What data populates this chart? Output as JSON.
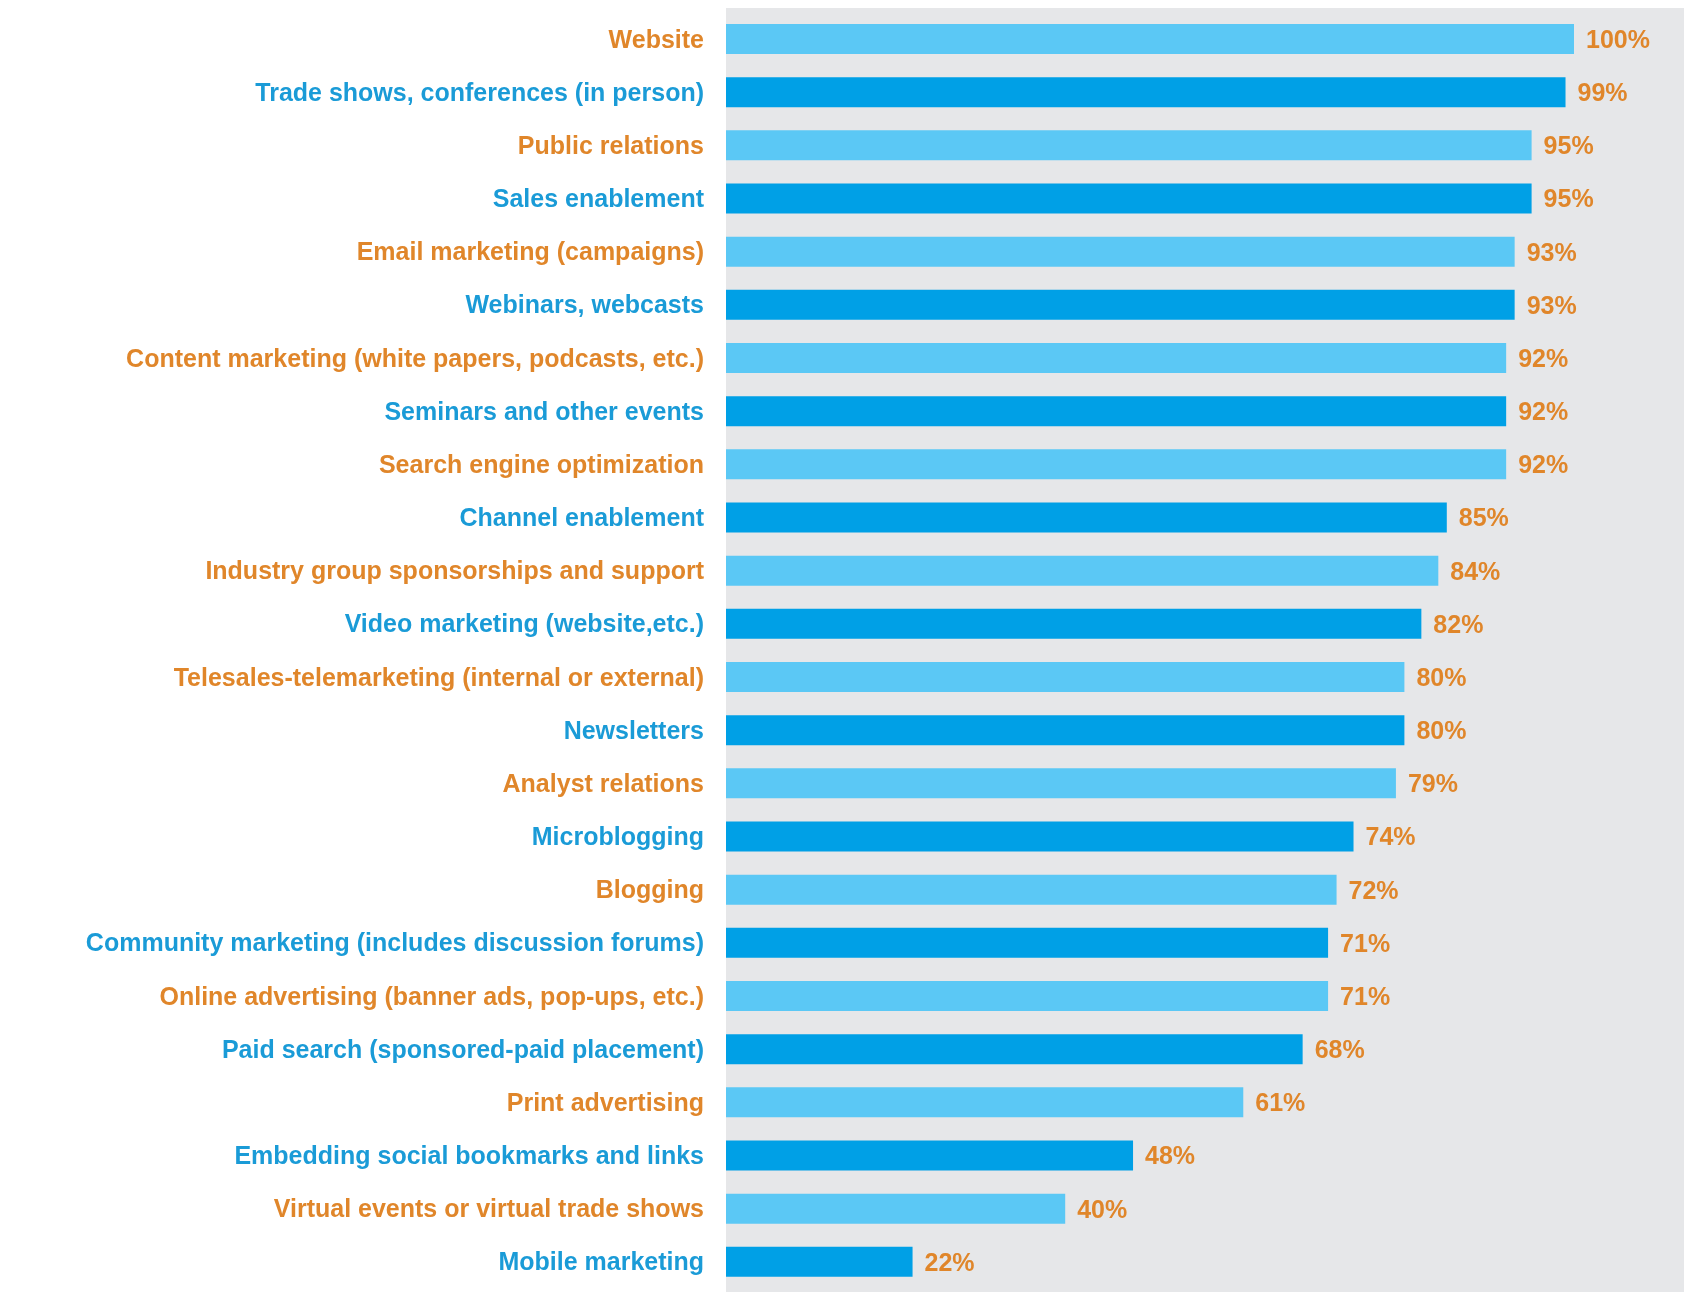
{
  "chart_data": {
    "type": "bar",
    "orientation": "horizontal",
    "categories": [
      "Website",
      "Trade shows, conferences (in person)",
      "Public relations",
      "Sales enablement",
      "Email marketing (campaigns)",
      "Webinars, webcasts",
      "Content marketing (white papers, podcasts, etc.)",
      "Seminars and other events",
      "Search engine optimization",
      "Channel enablement",
      "Industry group sponsorships and support",
      "Video marketing (website,etc.)",
      "Telesales-telemarketing (internal or external)",
      "Newsletters",
      "Analyst relations",
      "Microblogging",
      "Blogging",
      "Community marketing (includes discussion forums)",
      "Online advertising (banner ads, pop-ups, etc.)",
      "Paid search (sponsored-paid placement)",
      "Print advertising",
      "Embedding social bookmarks and links",
      "Virtual events or virtual trade shows",
      "Mobile marketing"
    ],
    "values": [
      100,
      99,
      95,
      95,
      93,
      93,
      92,
      92,
      92,
      85,
      84,
      82,
      80,
      80,
      79,
      74,
      72,
      71,
      71,
      68,
      61,
      48,
      40,
      22
    ],
    "colors": [
      "#5bc8f5",
      "#00a0e6",
      "#5bc8f5",
      "#00a0e6",
      "#5bc8f5",
      "#00a0e6",
      "#5bc8f5",
      "#00a0e6",
      "#5bc8f5",
      "#00a0e6",
      "#5bc8f5",
      "#00a0e6",
      "#5bc8f5",
      "#00a0e6",
      "#5bc8f5",
      "#00a0e6",
      "#5bc8f5",
      "#00a0e6",
      "#5bc8f5",
      "#00a0e6",
      "#5bc8f5",
      "#00a0e6",
      "#5bc8f5",
      "#00a0e6"
    ],
    "value_labels": [
      "100%",
      "99%",
      "95%",
      "95%",
      "93%",
      "93%",
      "92%",
      "92%",
      "92%",
      "85%",
      "84%",
      "82%",
      "80%",
      "80%",
      "79%",
      "74%",
      "72%",
      "71%",
      "71%",
      "68%",
      "61%",
      "48%",
      "40%",
      "22%"
    ],
    "xlim": [
      0,
      100
    ],
    "tick_labels": "y"
  }
}
